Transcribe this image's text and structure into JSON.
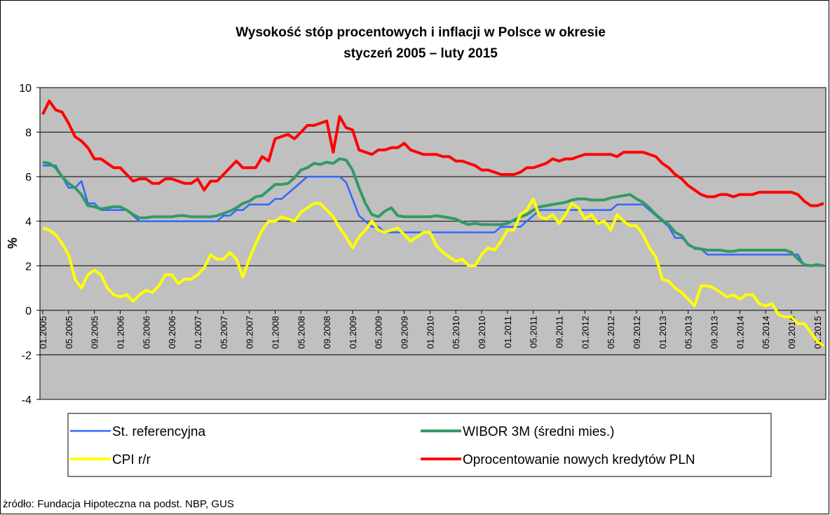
{
  "chart_data": {
    "type": "line",
    "title": "Wysokość stóp procentowych i inflacji w Polsce w okresie",
    "subtitle": "styczeń 2005 – luty 2015",
    "y_label": "%",
    "source": "żródło: Fundacja Hipoteczna na podst. NBP, GUS",
    "ylim": [
      -4,
      10
    ],
    "yticks": [
      -4,
      -2,
      0,
      2,
      4,
      6,
      8,
      10
    ],
    "grid": true,
    "categories": [
      "01.2005",
      null,
      null,
      null,
      "05.2005",
      null,
      null,
      null,
      "09.2005",
      null,
      null,
      null,
      "01.2006",
      null,
      null,
      null,
      "05.2006",
      null,
      null,
      null,
      "09.2006",
      null,
      null,
      null,
      "01.2007",
      null,
      null,
      null,
      "05.2007",
      null,
      null,
      null,
      "09.2007",
      null,
      null,
      null,
      "01.2008",
      null,
      null,
      null,
      "05.2008",
      null,
      null,
      null,
      "09.2008",
      null,
      null,
      null,
      "01.2009",
      null,
      null,
      null,
      "05.2009",
      null,
      null,
      null,
      "09.2009",
      null,
      null,
      null,
      "01.2010",
      null,
      null,
      null,
      "05.2010",
      null,
      null,
      null,
      "09.2010",
      null,
      null,
      null,
      "01.2011",
      null,
      null,
      null,
      "05.2011",
      null,
      null,
      null,
      "09.2011",
      null,
      null,
      null,
      "01.2012",
      null,
      null,
      null,
      "05.2012",
      null,
      null,
      null,
      "09.2012",
      null,
      null,
      null,
      "01.2013",
      null,
      null,
      null,
      "05.2013",
      null,
      null,
      null,
      "09.2013",
      null,
      null,
      null,
      "01.2014",
      null,
      null,
      null,
      "05.2014",
      null,
      null,
      null,
      "09.2014",
      null,
      null,
      null,
      "01.2015",
      null
    ],
    "series": [
      {
        "name": "St. referencyjna",
        "color": "#3366ff",
        "values": [
          6.5,
          6.5,
          6.5,
          6.0,
          5.5,
          5.5,
          5.8,
          4.8,
          4.8,
          4.5,
          4.5,
          4.5,
          4.5,
          4.5,
          4.25,
          4.0,
          4.0,
          4.0,
          4.0,
          4.0,
          4.0,
          4.0,
          4.0,
          4.0,
          4.0,
          4.0,
          4.0,
          4.0,
          4.25,
          4.25,
          4.5,
          4.5,
          4.75,
          4.75,
          4.75,
          4.75,
          5.0,
          5.0,
          5.25,
          5.5,
          5.75,
          6.0,
          6.0,
          6.0,
          6.0,
          6.0,
          6.0,
          5.75,
          5.0,
          4.25,
          4.0,
          3.75,
          3.75,
          3.5,
          3.5,
          3.5,
          3.5,
          3.5,
          3.5,
          3.5,
          3.5,
          3.5,
          3.5,
          3.5,
          3.5,
          3.5,
          3.5,
          3.5,
          3.5,
          3.5,
          3.5,
          3.75,
          3.75,
          3.75,
          3.75,
          4.0,
          4.25,
          4.5,
          4.5,
          4.5,
          4.5,
          4.5,
          4.5,
          4.5,
          4.5,
          4.5,
          4.5,
          4.5,
          4.5,
          4.75,
          4.75,
          4.75,
          4.75,
          4.75,
          4.5,
          4.25,
          4.0,
          3.75,
          3.25,
          3.25,
          3.0,
          2.75,
          2.75,
          2.5,
          2.5,
          2.5,
          2.5,
          2.5,
          2.5,
          2.5,
          2.5,
          2.5,
          2.5,
          2.5,
          2.5,
          2.5,
          2.5,
          2.5,
          2.0,
          2.0,
          2.0,
          2.0
        ]
      },
      {
        "name": "WIBOR 3M (średni mies.)",
        "color": "#339966",
        "values": [
          6.65,
          6.6,
          6.4,
          6.0,
          5.7,
          5.5,
          5.2,
          4.7,
          4.65,
          4.55,
          4.6,
          4.65,
          4.65,
          4.5,
          4.3,
          4.15,
          4.15,
          4.2,
          4.2,
          4.2,
          4.2,
          4.25,
          4.25,
          4.2,
          4.2,
          4.2,
          4.2,
          4.25,
          4.35,
          4.45,
          4.6,
          4.8,
          4.9,
          5.1,
          5.15,
          5.4,
          5.65,
          5.65,
          5.7,
          5.95,
          6.3,
          6.4,
          6.6,
          6.55,
          6.65,
          6.6,
          6.8,
          6.75,
          6.3,
          5.5,
          4.8,
          4.3,
          4.2,
          4.45,
          4.6,
          4.25,
          4.2,
          4.2,
          4.2,
          4.2,
          4.2,
          4.25,
          4.2,
          4.15,
          4.1,
          3.95,
          3.85,
          3.9,
          3.85,
          3.85,
          3.85,
          3.85,
          3.9,
          4.05,
          4.2,
          4.3,
          4.5,
          4.65,
          4.7,
          4.75,
          4.8,
          4.85,
          4.95,
          5.0,
          5.0,
          4.95,
          4.95,
          4.95,
          5.05,
          5.1,
          5.15,
          5.2,
          5.0,
          4.85,
          4.6,
          4.3,
          4.05,
          3.85,
          3.5,
          3.35,
          2.95,
          2.8,
          2.75,
          2.7,
          2.7,
          2.7,
          2.65,
          2.65,
          2.7,
          2.7,
          2.7,
          2.7,
          2.7,
          2.7,
          2.7,
          2.7,
          2.6,
          2.3,
          2.05,
          2.0,
          2.05,
          2.0
        ]
      },
      {
        "name": "CPI r/r",
        "color": "#ffff00",
        "values": [
          3.7,
          3.6,
          3.4,
          3.0,
          2.5,
          1.4,
          1.0,
          1.6,
          1.8,
          1.6,
          1.0,
          0.7,
          0.6,
          0.7,
          0.4,
          0.7,
          0.9,
          0.8,
          1.1,
          1.6,
          1.6,
          1.2,
          1.4,
          1.4,
          1.6,
          1.9,
          2.5,
          2.3,
          2.3,
          2.6,
          2.3,
          1.5,
          2.3,
          3.0,
          3.6,
          4.0,
          4.0,
          4.2,
          4.1,
          4.0,
          4.4,
          4.6,
          4.8,
          4.8,
          4.5,
          4.2,
          3.7,
          3.3,
          2.8,
          3.3,
          3.6,
          4.0,
          3.6,
          3.5,
          3.6,
          3.7,
          3.4,
          3.1,
          3.3,
          3.5,
          3.5,
          2.9,
          2.6,
          2.4,
          2.2,
          2.3,
          2.0,
          2.0,
          2.5,
          2.8,
          2.7,
          3.1,
          3.6,
          3.6,
          4.3,
          4.5,
          5.0,
          4.2,
          4.1,
          4.3,
          3.9,
          4.3,
          4.8,
          4.6,
          4.1,
          4.3,
          3.9,
          4.0,
          3.6,
          4.3,
          4.0,
          3.8,
          3.8,
          3.4,
          2.8,
          2.4,
          1.4,
          1.3,
          1.0,
          0.8,
          0.5,
          0.2,
          1.1,
          1.1,
          1.0,
          0.8,
          0.6,
          0.7,
          0.5,
          0.7,
          0.7,
          0.3,
          0.2,
          0.3,
          -0.2,
          -0.3,
          -0.3,
          -0.6,
          -0.6,
          -1.0,
          -1.4,
          -1.6
        ]
      },
      {
        "name": "Oprocentowanie nowych kredytów PLN",
        "color": "#ff0000",
        "values": [
          8.8,
          9.4,
          9.0,
          8.9,
          8.4,
          7.8,
          7.6,
          7.3,
          6.8,
          6.8,
          6.6,
          6.4,
          6.4,
          6.1,
          5.8,
          5.9,
          5.9,
          5.7,
          5.7,
          5.9,
          5.9,
          5.8,
          5.7,
          5.7,
          5.9,
          5.4,
          5.8,
          5.8,
          6.1,
          6.4,
          6.7,
          6.4,
          6.4,
          6.4,
          6.9,
          6.7,
          7.7,
          7.8,
          7.9,
          7.7,
          8.0,
          8.3,
          8.3,
          8.4,
          8.5,
          7.1,
          8.7,
          8.2,
          8.1,
          7.2,
          7.1,
          7.0,
          7.2,
          7.2,
          7.3,
          7.3,
          7.5,
          7.2,
          7.1,
          7.0,
          7.0,
          7.0,
          6.9,
          6.9,
          6.7,
          6.7,
          6.6,
          6.5,
          6.3,
          6.3,
          6.2,
          6.1,
          6.1,
          6.1,
          6.2,
          6.4,
          6.4,
          6.5,
          6.6,
          6.8,
          6.7,
          6.8,
          6.8,
          6.9,
          7.0,
          7.0,
          7.0,
          7.0,
          7.0,
          6.9,
          7.1,
          7.1,
          7.1,
          7.1,
          7.0,
          6.9,
          6.6,
          6.4,
          6.1,
          5.9,
          5.6,
          5.4,
          5.2,
          5.1,
          5.1,
          5.2,
          5.2,
          5.1,
          5.2,
          5.2,
          5.2,
          5.3,
          5.3,
          5.3,
          5.3,
          5.3,
          5.3,
          5.2,
          4.9,
          4.7,
          4.7,
          4.8
        ]
      }
    ]
  }
}
